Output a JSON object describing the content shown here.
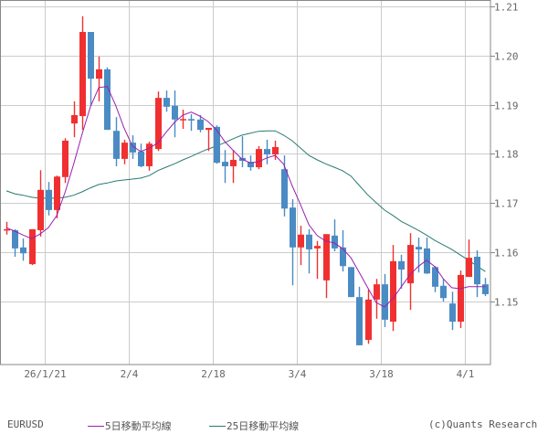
{
  "colors": {
    "up": "#f03030",
    "down": "#4a8bc4",
    "ma5": "#9a20b0",
    "ma25": "#2a7a70",
    "grid": "#cccccc",
    "axis": "#888888"
  },
  "legend": {
    "symbol": "EURUSD",
    "ma5_label": "5日移動平均線",
    "ma25_label": "25日移動平均線",
    "copyright": "(c)Quants Research"
  },
  "chart_data": {
    "type": "candlestick",
    "title": "",
    "symbol": "EURUSD",
    "xlabel": "",
    "ylabel": "",
    "ylim": [
      1.1375,
      1.21
    ],
    "y_ticks": [
      1.21,
      1.2,
      1.19,
      1.18,
      1.17,
      1.16,
      1.15
    ],
    "y_tick_labels": [
      "1.21",
      "1.20",
      "1.19",
      "1.18",
      "1.17",
      "1.16",
      "1.15"
    ],
    "x_ticks": [
      {
        "index": 5,
        "label": "26/1/21"
      },
      {
        "index": 15,
        "label": "2/4"
      },
      {
        "index": 25,
        "label": "2/18"
      },
      {
        "index": 35,
        "label": "3/4"
      },
      {
        "index": 45,
        "label": "3/18"
      },
      {
        "index": 55,
        "label": "4/1"
      }
    ],
    "grid": true,
    "legend_position": "bottom",
    "ohlc": [
      [
        1.1645,
        1.1662,
        1.1636,
        1.1647
      ],
      [
        1.1645,
        1.1647,
        1.1591,
        1.1608
      ],
      [
        1.161,
        1.1628,
        1.1583,
        1.1598
      ],
      [
        1.1576,
        1.1647,
        1.1574,
        1.1647
      ],
      [
        1.1645,
        1.1767,
        1.1632,
        1.1727
      ],
      [
        1.1727,
        1.1743,
        1.1675,
        1.1686
      ],
      [
        1.1686,
        1.1756,
        1.1669,
        1.1754
      ],
      [
        1.1753,
        1.1832,
        1.1741,
        1.1827
      ],
      [
        1.1862,
        1.1907,
        1.1834,
        1.1879
      ],
      [
        1.1877,
        1.208,
        1.1849,
        1.2048
      ],
      [
        1.2048,
        1.2048,
        1.1899,
        1.1953
      ],
      [
        1.1953,
        1.1998,
        1.1907,
        1.1972
      ],
      [
        1.1972,
        1.1976,
        1.1849,
        1.1849
      ],
      [
        1.1847,
        1.1875,
        1.1775,
        1.179
      ],
      [
        1.179,
        1.1829,
        1.1779,
        1.1823
      ],
      [
        1.1823,
        1.1838,
        1.179,
        1.1803
      ],
      [
        1.1805,
        1.1821,
        1.1773,
        1.1775
      ],
      [
        1.1775,
        1.1825,
        1.1766,
        1.1821
      ],
      [
        1.181,
        1.1927,
        1.1806,
        1.1914
      ],
      [
        1.1914,
        1.1929,
        1.1886,
        1.1896
      ],
      [
        1.1898,
        1.1929,
        1.1834,
        1.187
      ],
      [
        1.187,
        1.189,
        1.1851,
        1.1871
      ],
      [
        1.1871,
        1.1881,
        1.1847,
        1.1868
      ],
      [
        1.187,
        1.1879,
        1.1844,
        1.1849
      ],
      [
        1.1849,
        1.1853,
        1.1806,
        1.1853
      ],
      [
        1.1855,
        1.1858,
        1.178,
        1.1782
      ],
      [
        1.1784,
        1.1808,
        1.1741,
        1.1775
      ],
      [
        1.1775,
        1.1808,
        1.1741,
        1.1788
      ],
      [
        1.1792,
        1.1836,
        1.1773,
        1.1786
      ],
      [
        1.1784,
        1.1797,
        1.1766,
        1.1773
      ],
      [
        1.1773,
        1.1816,
        1.1769,
        1.181
      ],
      [
        1.181,
        1.1829,
        1.1779,
        1.1799
      ],
      [
        1.1799,
        1.1827,
        1.1788,
        1.1814
      ],
      [
        1.1769,
        1.1797,
        1.1673,
        1.1689
      ],
      [
        1.1691,
        1.1708,
        1.1533,
        1.161
      ],
      [
        1.161,
        1.1654,
        1.1574,
        1.1636
      ],
      [
        1.1636,
        1.1647,
        1.1557,
        1.1606
      ],
      [
        1.1608,
        1.1623,
        1.1546,
        1.1613
      ],
      [
        1.1543,
        1.1637,
        1.1507,
        1.1637
      ],
      [
        1.1634,
        1.1667,
        1.1602,
        1.1608
      ],
      [
        1.161,
        1.1645,
        1.1561,
        1.1572
      ],
      [
        1.157,
        1.157,
        1.1509,
        1.1509
      ],
      [
        1.1509,
        1.153,
        1.1411,
        1.1411
      ],
      [
        1.1422,
        1.1524,
        1.1414,
        1.1504
      ],
      [
        1.1504,
        1.1546,
        1.1465,
        1.1535
      ],
      [
        1.1535,
        1.1556,
        1.1448,
        1.1463
      ],
      [
        1.1459,
        1.1615,
        1.144,
        1.1582
      ],
      [
        1.1582,
        1.1595,
        1.1526,
        1.1565
      ],
      [
        1.1537,
        1.1639,
        1.1483,
        1.1615
      ],
      [
        1.1611,
        1.163,
        1.1559,
        1.1606
      ],
      [
        1.1608,
        1.163,
        1.1556,
        1.1557
      ],
      [
        1.157,
        1.1572,
        1.1519,
        1.153
      ],
      [
        1.1532,
        1.1546,
        1.15,
        1.1507
      ],
      [
        1.1496,
        1.152,
        1.1442,
        1.1459
      ],
      [
        1.1459,
        1.1563,
        1.1446,
        1.1554
      ],
      [
        1.155,
        1.1626,
        1.155,
        1.1589
      ],
      [
        1.1591,
        1.1604,
        1.1509,
        1.1535
      ],
      [
        1.1535,
        1.1548,
        1.1511,
        1.1515
      ]
    ],
    "series": [
      {
        "name": "5日移動平均線",
        "values": [
          1.165,
          1.1643,
          1.1635,
          1.1628,
          1.1637,
          1.165,
          1.1675,
          1.1723,
          1.1779,
          1.184,
          1.1896,
          1.1935,
          1.1937,
          1.1899,
          1.1853,
          1.1816,
          1.1805,
          1.1812,
          1.1822,
          1.1844,
          1.1864,
          1.1879,
          1.1885,
          1.1877,
          1.1866,
          1.1849,
          1.1825,
          1.1807,
          1.179,
          1.1782,
          1.1784,
          1.1792,
          1.1797,
          1.1779,
          1.1736,
          1.1697,
          1.1656,
          1.1634,
          1.1623,
          1.1619,
          1.1608,
          1.1589,
          1.1559,
          1.1528,
          1.1498,
          1.1489,
          1.1506,
          1.153,
          1.1554,
          1.1571,
          1.1584,
          1.1571,
          1.1546,
          1.1528,
          1.1526,
          1.153,
          1.153,
          1.153
        ]
      },
      {
        "name": "25日移動平均線",
        "values": [
          1.1725,
          1.1719,
          1.1716,
          1.1712,
          1.171,
          1.171,
          1.171,
          1.1712,
          1.1716,
          1.1723,
          1.1731,
          1.1738,
          1.1741,
          1.1745,
          1.1747,
          1.1749,
          1.1751,
          1.1756,
          1.1766,
          1.1773,
          1.178,
          1.1788,
          1.1795,
          1.1803,
          1.181,
          1.1816,
          1.1823,
          1.1831,
          1.1838,
          1.1842,
          1.1846,
          1.1847,
          1.1847,
          1.1838,
          1.1827,
          1.1812,
          1.1797,
          1.1788,
          1.178,
          1.1773,
          1.1766,
          1.1755,
          1.1736,
          1.1717,
          1.1701,
          1.1686,
          1.1675,
          1.1663,
          1.1654,
          1.1645,
          1.1635,
          1.1624,
          1.1615,
          1.1606,
          1.1595,
          1.1584,
          1.1572,
          1.1561
        ]
      }
    ]
  }
}
